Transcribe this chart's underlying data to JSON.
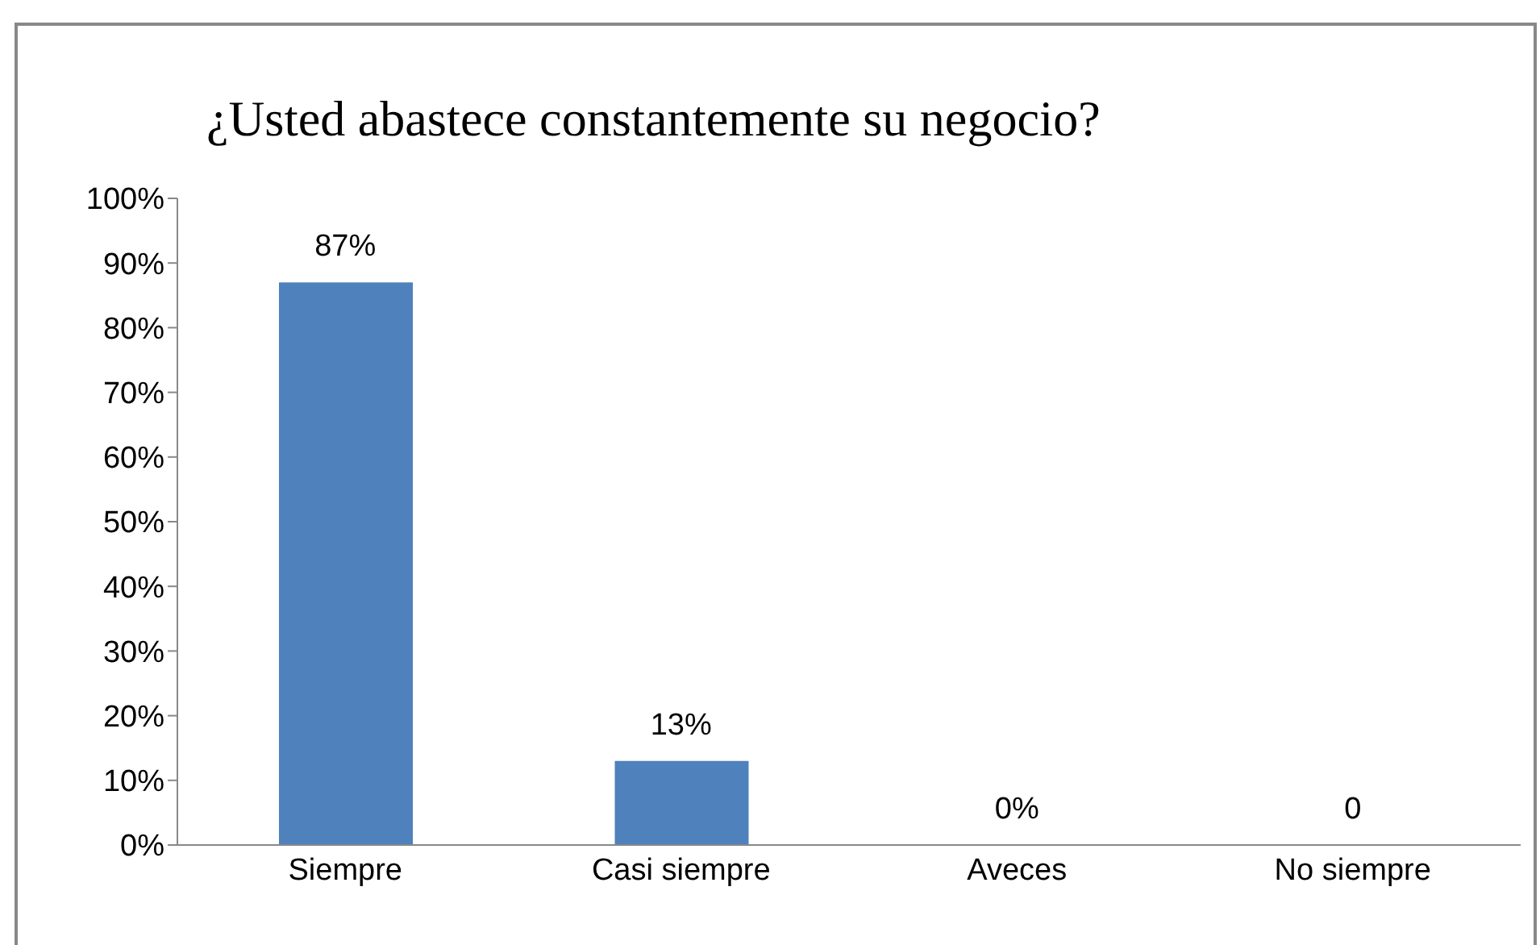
{
  "chart_data": {
    "type": "bar",
    "title": "¿Usted abastece constantemente su negocio?",
    "categories": [
      "Siempre",
      "Casi siempre",
      "Aveces",
      "No siempre"
    ],
    "values": [
      87,
      13,
      0,
      0
    ],
    "color": "#4f81bd",
    "value_labels": [
      "87%",
      "13%",
      "0%",
      "0"
    ],
    "ylim": [
      0,
      100
    ],
    "yticks": [
      {
        "value": 0,
        "label": "0%"
      },
      {
        "value": 10,
        "label": "10%"
      },
      {
        "value": 20,
        "label": "20%"
      },
      {
        "value": 30,
        "label": "30%"
      },
      {
        "value": 40,
        "label": "40%"
      },
      {
        "value": 50,
        "label": "50%"
      },
      {
        "value": 60,
        "label": "60%"
      },
      {
        "value": 70,
        "label": "70%"
      },
      {
        "value": 80,
        "label": "80%"
      },
      {
        "value": 90,
        "label": "90%"
      },
      {
        "value": 100,
        "label": "100%"
      }
    ],
    "grid": false,
    "legend": false
  }
}
